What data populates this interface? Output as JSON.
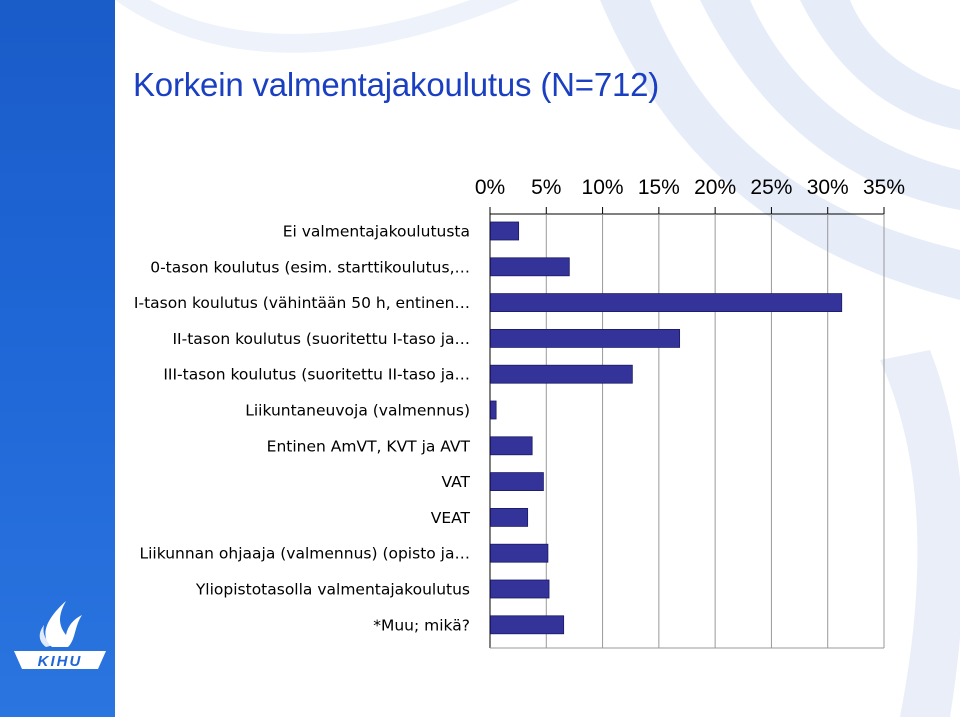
{
  "title": "Korkein valmentajakoulutus (N=712)",
  "logo": {
    "text": "KIHU",
    "colors": {
      "mark": "#ffffff",
      "band": "#1f66d6"
    }
  },
  "colors": {
    "bar": "#333399",
    "bar_edge": "#1a1a66",
    "grid": "#000000",
    "title": "#1a3fc0"
  },
  "chart_data": {
    "type": "bar",
    "orientation": "horizontal",
    "title": "Korkein valmentajakoulutus (N=712)",
    "xlabel": "",
    "ylabel": "",
    "xlim": [
      0,
      35
    ],
    "xticks": [
      0,
      5,
      10,
      15,
      20,
      25,
      30,
      35
    ],
    "xtick_labels": [
      "0%",
      "5%",
      "10%",
      "15%",
      "20%",
      "25%",
      "30%",
      "35%"
    ],
    "axis_position": "top",
    "grid": true,
    "categories": [
      "Ei valmentajakoulutusta",
      "0-tason koulutus (esim. starttikoulutus,…",
      "I-tason koulutus (vähintään 50 h, entinen…",
      "II-tason koulutus (suoritettu I-taso ja…",
      "III-tason koulutus (suoritettu II-taso ja…",
      "Liikuntaneuvoja (valmennus)",
      "Entinen AmVT, KVT ja AVT",
      "VAT",
      "VEAT",
      "Liikunnan ohjaaja (valmennus) (opisto ja…",
      "Yliopistotasolla valmentajakoulutus",
      "*Muu; mikä?"
    ],
    "values": [
      2.5,
      7.0,
      31.2,
      16.8,
      12.6,
      0.5,
      3.7,
      4.7,
      3.3,
      5.1,
      5.2,
      6.5
    ]
  }
}
